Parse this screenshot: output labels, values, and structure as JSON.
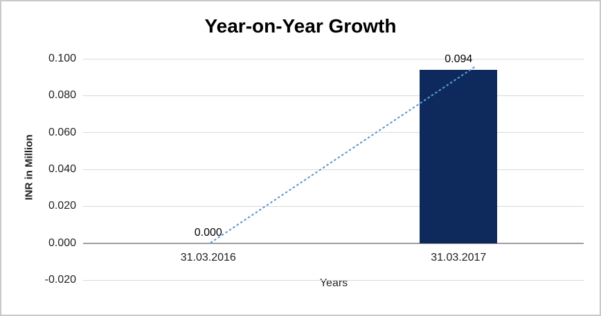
{
  "chart_data": {
    "type": "bar",
    "title": "Year-on-Year Growth",
    "xlabel": "Years",
    "ylabel": "INR in Million",
    "categories": [
      "31.03.2016",
      "31.03.2017"
    ],
    "values": [
      0.0,
      0.094
    ],
    "data_labels": [
      "0.000",
      "0.094"
    ],
    "y_tick_values": [
      0.1,
      0.08,
      0.06,
      0.04,
      0.02,
      0.0,
      -0.02
    ],
    "y_tick_labels": [
      "0.100",
      "0.080",
      "0.060",
      "0.040",
      "0.020",
      "0.000",
      "-0.020"
    ],
    "ylim": [
      -0.02,
      0.1
    ],
    "grid": true,
    "legend": false,
    "bar_color": "#0e2a5c",
    "trendline": {
      "type": "linear",
      "style": "dotted",
      "color": "#5B9BD5"
    },
    "gridline_color": "#d9d9d9",
    "axis_line_color": "#9e9e9e",
    "text_color": "#1f1f1f"
  }
}
